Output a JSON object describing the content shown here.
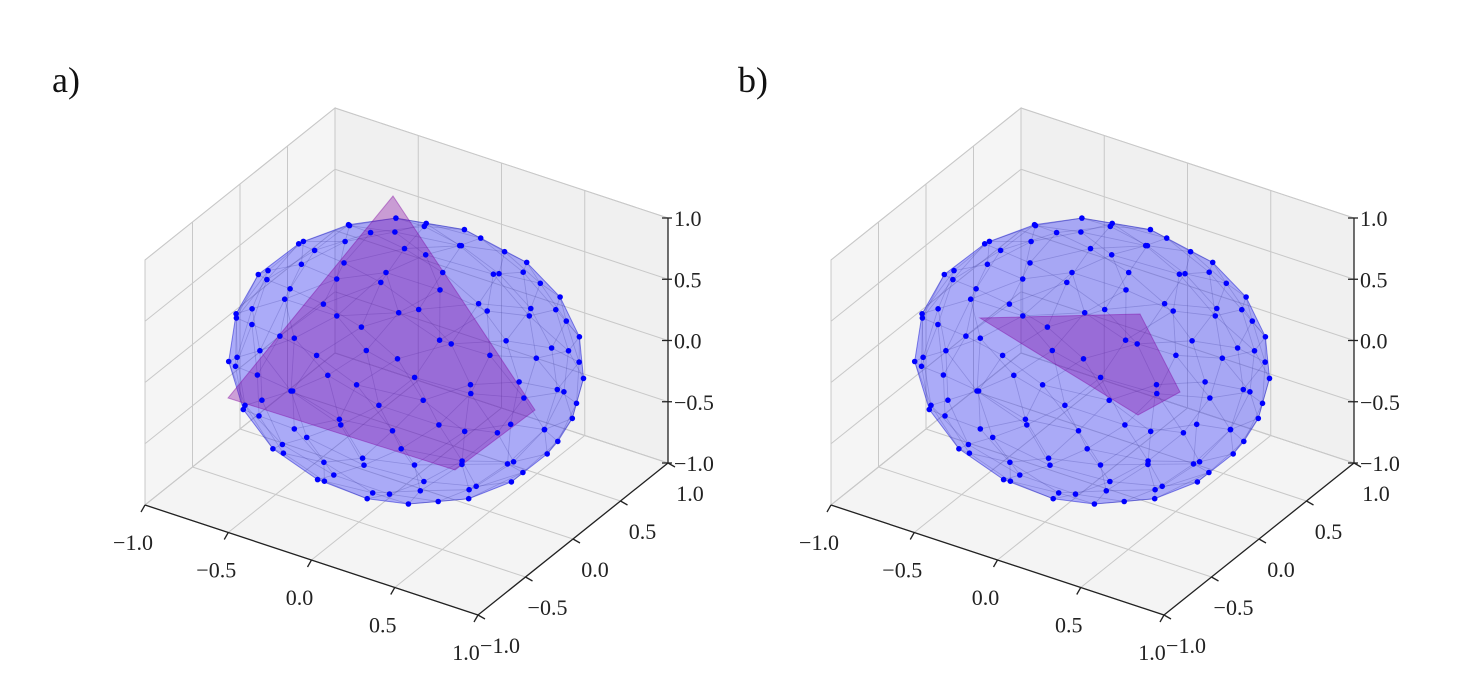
{
  "chart_data": [
    {
      "panel_label": "a)",
      "type": "scatter3d",
      "xlim": [
        -1.0,
        1.0
      ],
      "ylim": [
        -1.0,
        1.0
      ],
      "zlim": [
        -1.0,
        1.0
      ],
      "xticks": [
        "−1.0",
        "−0.5",
        "0.0",
        "0.5",
        "1.0"
      ],
      "yticks": [
        "−1.0",
        "−0.5",
        "0.0",
        "0.5",
        "1.0"
      ],
      "zticks": [
        "−1.0",
        "−0.5",
        "0.0",
        "0.5",
        "1.0"
      ],
      "grid": true,
      "point_color": "#0000ff",
      "hull_color": "#0000ff",
      "highlight_color": "#8000a0",
      "highlight_shape": "tetrahedron"
    },
    {
      "panel_label": "b)",
      "type": "scatter3d",
      "xlim": [
        -1.0,
        1.0
      ],
      "ylim": [
        -1.0,
        1.0
      ],
      "zlim": [
        -1.0,
        1.0
      ],
      "xticks": [
        "−1.0",
        "−0.5",
        "0.0",
        "0.5",
        "1.0"
      ],
      "yticks": [
        "−1.0",
        "−0.5",
        "0.0",
        "0.5",
        "1.0"
      ],
      "zticks": [
        "−1.0",
        "−0.5",
        "0.0",
        "0.5",
        "1.0"
      ],
      "grid": true,
      "point_color": "#0000ff",
      "hull_color": "#0000ff",
      "highlight_color": "#8000a0",
      "highlight_shape": "triangle"
    }
  ]
}
